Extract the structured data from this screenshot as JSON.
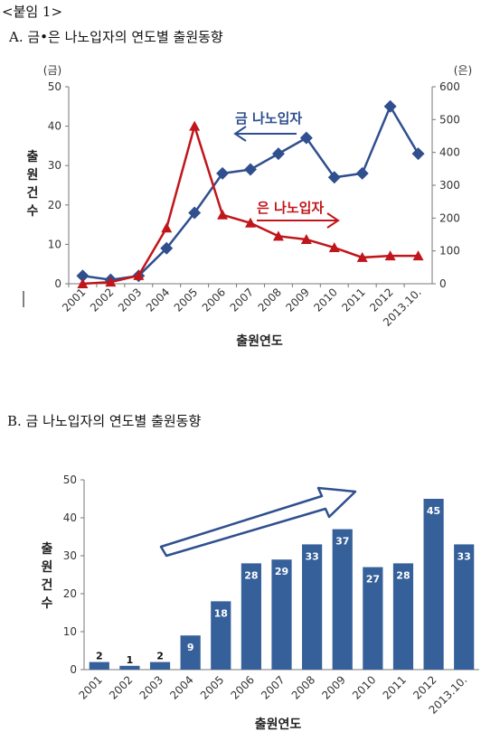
{
  "header": {
    "attachment": "<붙임 1>",
    "title_a": "A. 금•은 나노입자의 연도별 출원동향",
    "title_b": "B. 금 나노입자의 연도별 출원동향"
  },
  "chart_data": [
    {
      "type": "line",
      "categories": [
        "2001",
        "2002",
        "2003",
        "2004",
        "2005",
        "2006",
        "2007",
        "2008",
        "2009",
        "2010",
        "2011",
        "2012",
        "2013.10."
      ],
      "xlabel": "출원연도",
      "ylabel": "출원건수",
      "left_unit": "(금)",
      "right_unit": "(은)",
      "ylim_left": [
        0,
        50
      ],
      "ylim_right": [
        0,
        600
      ],
      "left_ticks": [
        "0",
        "10",
        "20",
        "30",
        "40",
        "50"
      ],
      "right_ticks": [
        "0",
        "100",
        "200",
        "300",
        "400",
        "500",
        "600"
      ],
      "series": [
        {
          "name": "금 나노입자",
          "axis": "left",
          "color": "#2f4f8f",
          "marker": "diamond",
          "values": [
            2,
            1,
            2,
            9,
            18,
            28,
            29,
            33,
            37,
            27,
            28,
            45,
            33
          ]
        },
        {
          "name": "은 나노입자",
          "axis": "right",
          "color": "#c0161b",
          "marker": "triangle",
          "values": [
            0,
            5,
            25,
            170,
            480,
            210,
            185,
            145,
            135,
            110,
            80,
            85,
            85
          ]
        }
      ],
      "grid": false
    },
    {
      "type": "bar",
      "categories": [
        "2001",
        "2002",
        "2003",
        "2004",
        "2005",
        "2006",
        "2007",
        "2008",
        "2009",
        "2010",
        "2011",
        "2012",
        "2013.10."
      ],
      "values": [
        2,
        1,
        2,
        9,
        18,
        28,
        29,
        33,
        37,
        27,
        28,
        45,
        33
      ],
      "data_labels": [
        "2",
        "1",
        "2",
        "9",
        "18",
        "28",
        "29",
        "33",
        "37",
        "27",
        "28",
        "45",
        "33"
      ],
      "xlabel": "출원연도",
      "ylabel": "출원건수",
      "ylim": [
        0,
        50
      ],
      "ticks": [
        "0",
        "10",
        "20",
        "30",
        "40",
        "50"
      ],
      "color": "#36609a",
      "grid": false
    }
  ]
}
